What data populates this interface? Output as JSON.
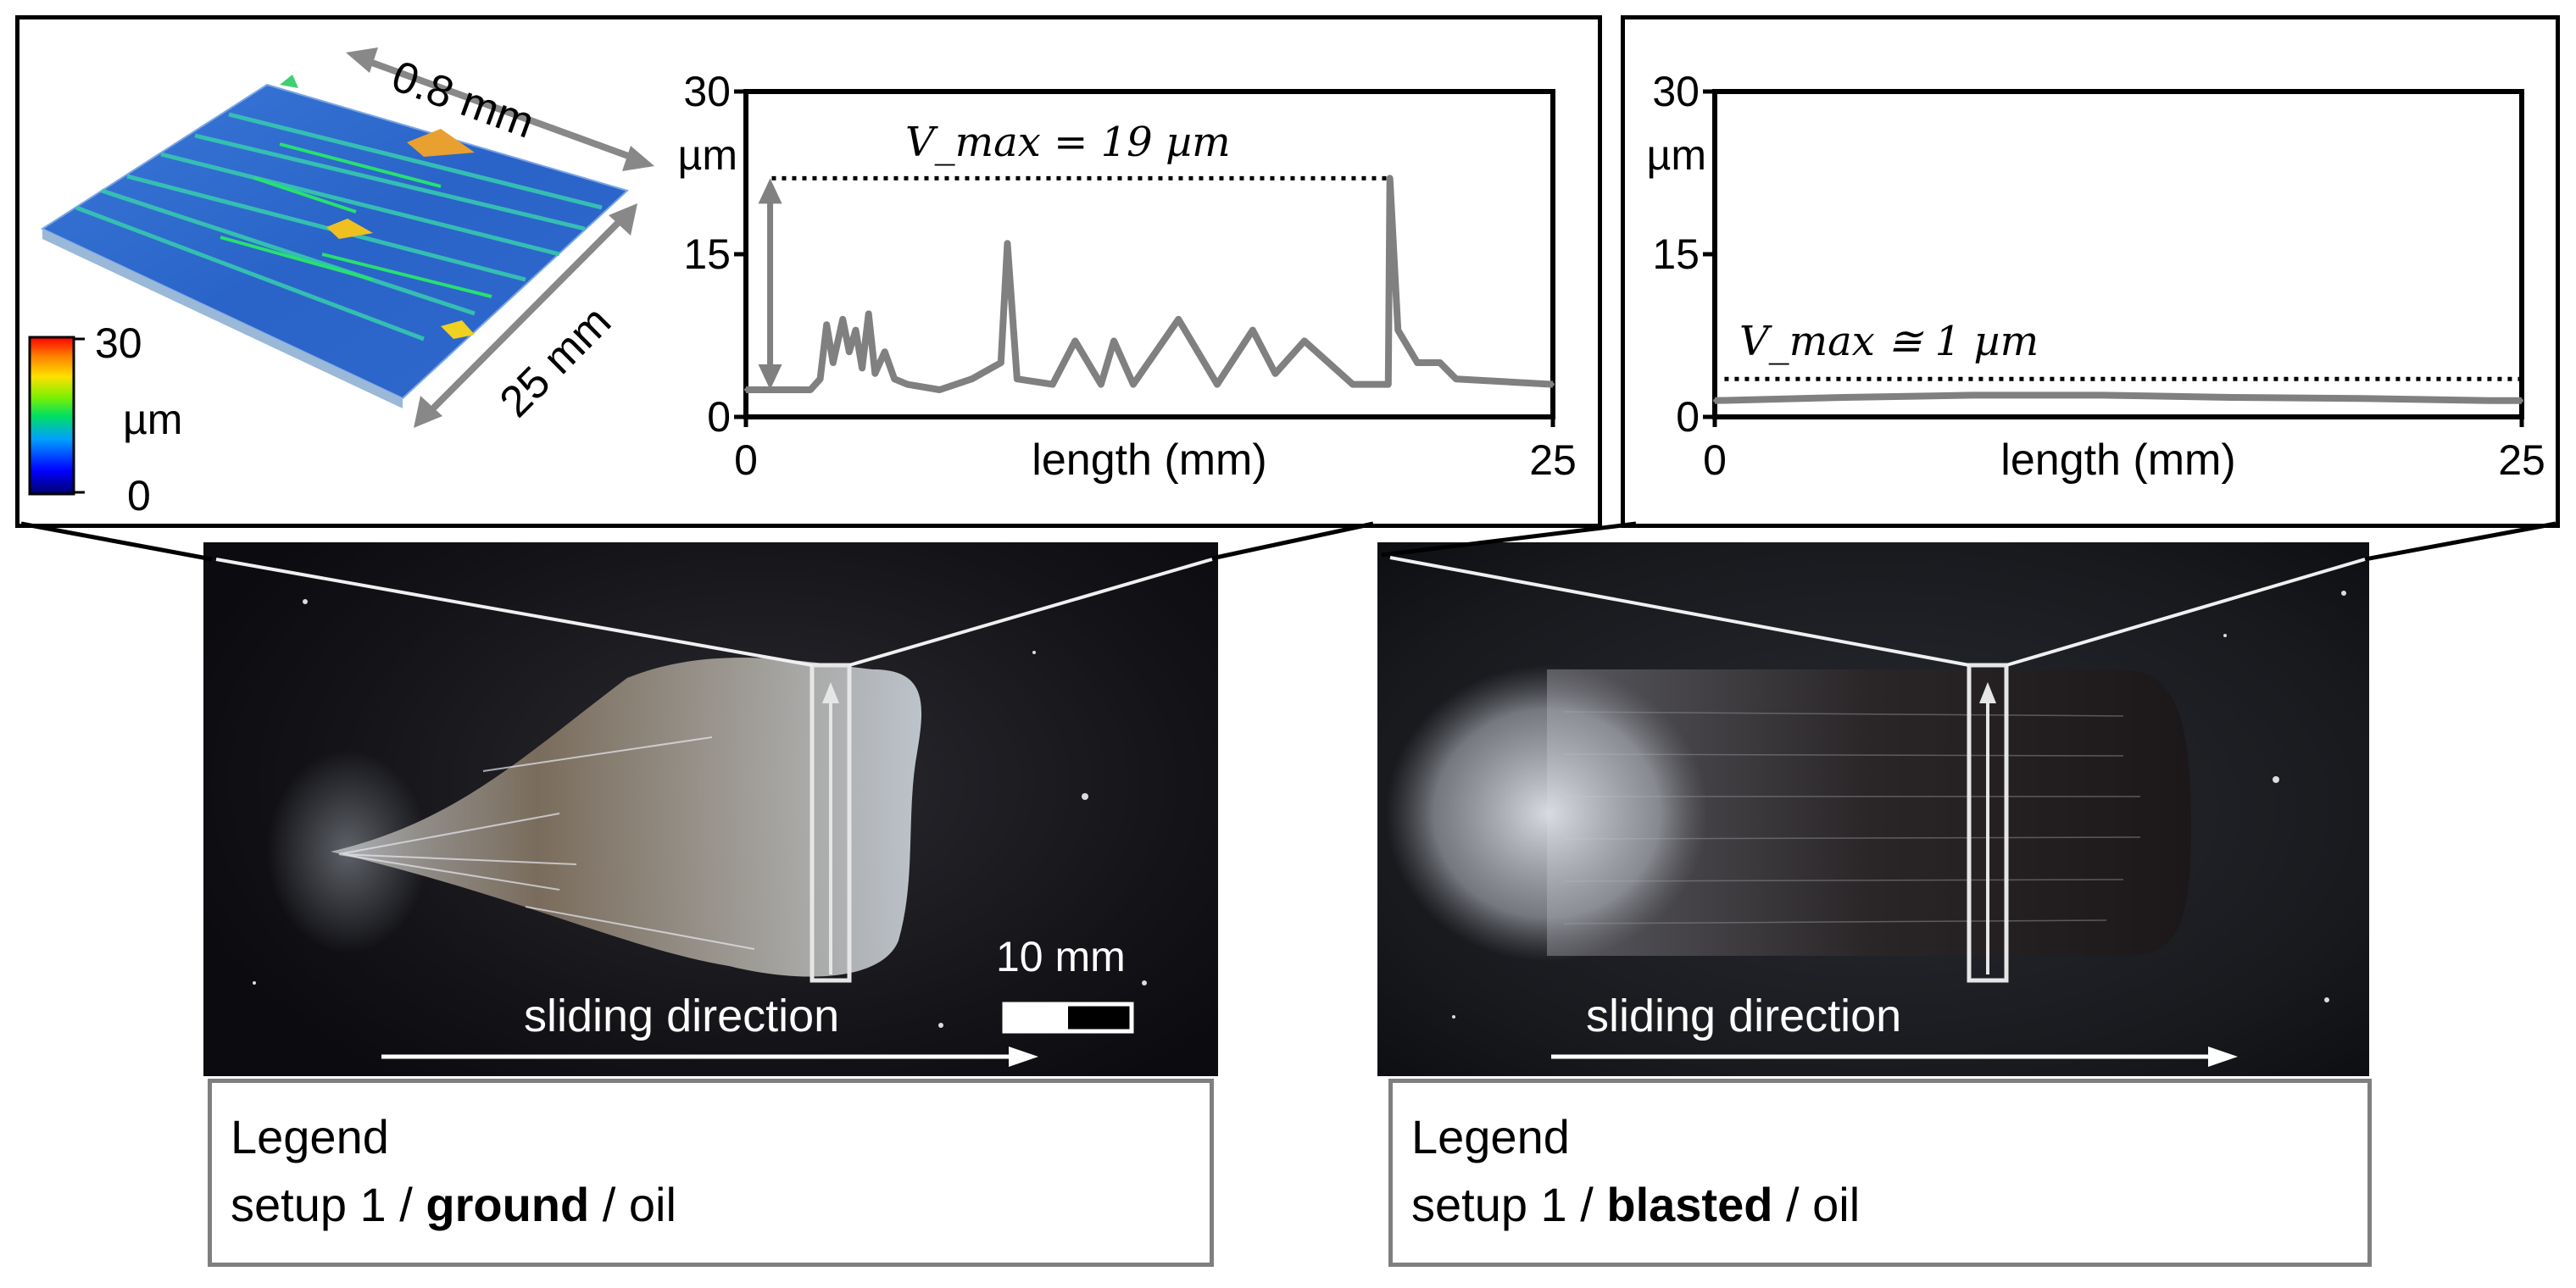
{
  "left_panel": {
    "surface_map": {
      "dim_width_label": "0.8 mm",
      "dim_length_label": "25 mm",
      "colorbar": {
        "max_label": "30",
        "unit_label": "µm",
        "min_label": "0",
        "colors": [
          "#00006e",
          "#0000ff",
          "#00a0ff",
          "#00e060",
          "#80f000",
          "#ffe000",
          "#ff8000",
          "#ff0000"
        ]
      }
    },
    "profile_chart": {
      "annotation": "V_max = 19 µm"
    },
    "photo": {
      "sliding_label": "sliding direction",
      "scale_label": "10 mm"
    },
    "legend": {
      "title": "Legend",
      "setup": "setup 1 / ",
      "surface": "ground",
      "lubricant": " / oil"
    }
  },
  "right_panel": {
    "profile_chart": {
      "annotation": "V_max ≅ 1 µm"
    },
    "photo": {
      "sliding_label": "sliding direction"
    },
    "legend": {
      "title": "Legend",
      "setup": "setup 1 / ",
      "surface": "blasted",
      "lubricant": " / oil"
    }
  },
  "chart_data": [
    {
      "type": "line",
      "xlabel": "length (mm)",
      "ylabel": "µm",
      "xlim": [
        0,
        25
      ],
      "ylim": [
        0,
        30
      ],
      "xticks": [
        "0",
        "25"
      ],
      "yticks": [
        "0",
        "15",
        "30"
      ],
      "annotation": "V_max = 19 µm",
      "vmax_level": 22,
      "color": "#808080",
      "series": [
        {
          "x": [
            0,
            2,
            2.3,
            2.5,
            2.7,
            3.0,
            3.2,
            3.4,
            3.6,
            3.8,
            4.0,
            4.3,
            4.6,
            5,
            6,
            7,
            7.9,
            8.1,
            8.4,
            9.5,
            10.2,
            11,
            11.4,
            12,
            13.4,
            14.6,
            15.7,
            16.4,
            17.3,
            18.8,
            19.9,
            19.95,
            20.2,
            20.8,
            21.5,
            22,
            25
          ],
          "y": [
            2.5,
            2.5,
            3.5,
            8.5,
            5,
            9,
            6,
            8,
            4.5,
            9.5,
            4,
            6,
            3.5,
            3,
            2.5,
            3.5,
            5,
            16,
            3.5,
            3,
            7,
            3,
            7,
            3,
            9,
            3,
            8,
            4,
            7,
            3,
            3,
            22,
            8,
            5,
            5,
            3.5,
            3
          ]
        }
      ]
    },
    {
      "type": "line",
      "xlabel": "length (mm)",
      "ylabel": "µm",
      "xlim": [
        0,
        25
      ],
      "ylim": [
        0,
        30
      ],
      "xticks": [
        "0",
        "25"
      ],
      "yticks": [
        "0",
        "15",
        "30"
      ],
      "annotation": "V_max ≅ 1 µm",
      "vmax_level": 3.5,
      "color": "#808080",
      "series": [
        {
          "x": [
            0,
            4,
            8,
            12,
            16,
            20,
            24,
            25
          ],
          "y": [
            1.5,
            1.8,
            2.0,
            2.0,
            1.8,
            1.7,
            1.5,
            1.5
          ]
        }
      ]
    }
  ]
}
